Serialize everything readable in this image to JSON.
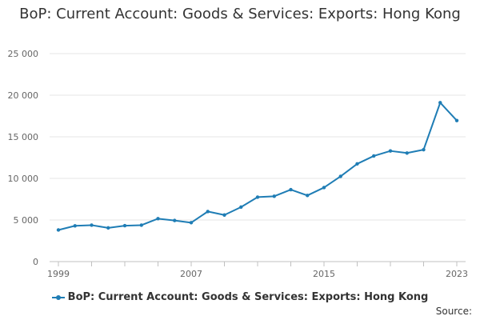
{
  "chart_data": {
    "type": "line",
    "title": "BoP: Current Account: Goods & Services: Exports: Hong Kong",
    "xlabel": "",
    "ylabel": "",
    "x": [
      1999,
      2000,
      2001,
      2002,
      2003,
      2004,
      2005,
      2006,
      2007,
      2008,
      2009,
      2010,
      2011,
      2012,
      2013,
      2014,
      2015,
      2016,
      2017,
      2018,
      2019,
      2020,
      2021,
      2022,
      2023
    ],
    "x_tick_labels": [
      "1999",
      "2007",
      "2015",
      "2023"
    ],
    "y_tick_labels": [
      "0",
      "5 000",
      "10 000",
      "15 000",
      "20 000",
      "25 000"
    ],
    "ylim": [
      0,
      25000
    ],
    "grid": "horizontal",
    "legend_position": "bottom",
    "series": [
      {
        "name": "BoP: Current Account: Goods & Services: Exports: Hong Kong",
        "color": "#1f7db5",
        "values": [
          3800,
          4300,
          4380,
          4050,
          4320,
          4380,
          5160,
          4940,
          4680,
          6020,
          5600,
          6550,
          7750,
          7850,
          8650,
          7950,
          8900,
          10250,
          11750,
          12700,
          13300,
          13050,
          13450,
          19100,
          16950
        ]
      }
    ]
  },
  "source_label": "Source:"
}
